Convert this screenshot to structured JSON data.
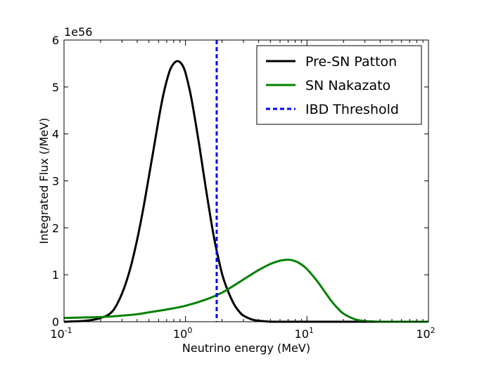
{
  "chart_data": {
    "type": "line",
    "title": "",
    "xlabel": "Neutrino energy (MeV)",
    "ylabel": "Integrated Flux (/MeV)",
    "y_offset_label": "1e56",
    "x_scale": "log",
    "xlim": [
      0.1,
      100
    ],
    "ylim": [
      0,
      6
    ],
    "x_ticks": [
      {
        "value": 0.1,
        "base": "10",
        "exp": "-1"
      },
      {
        "value": 1,
        "base": "10",
        "exp": "0"
      },
      {
        "value": 10,
        "base": "10",
        "exp": "1"
      },
      {
        "value": 100,
        "base": "10",
        "exp": "2"
      }
    ],
    "y_ticks": [
      {
        "value": 0,
        "label": "0"
      },
      {
        "value": 1,
        "label": "1"
      },
      {
        "value": 2,
        "label": "2"
      },
      {
        "value": 3,
        "label": "3"
      },
      {
        "value": 4,
        "label": "4"
      },
      {
        "value": 5,
        "label": "5"
      },
      {
        "value": 6,
        "label": "6"
      }
    ],
    "grid": false,
    "legend_position": "top-right",
    "series": [
      {
        "name": "Pre-SN Patton",
        "color": "#000000",
        "style": "solid",
        "x": [
          0.1,
          0.15,
          0.2,
          0.25,
          0.3,
          0.35,
          0.4,
          0.45,
          0.5,
          0.55,
          0.6,
          0.65,
          0.7,
          0.75,
          0.8,
          0.85,
          0.9,
          0.95,
          1.0,
          1.1,
          1.2,
          1.3,
          1.4,
          1.5,
          1.6,
          1.7,
          1.8,
          2.0,
          2.2,
          2.5,
          2.8,
          3.0,
          3.5,
          4.0,
          4.5,
          5.0,
          6.0,
          8.0,
          10.0,
          20.0,
          40.0,
          100.0
        ],
        "y": [
          0.0,
          0.02,
          0.08,
          0.22,
          0.6,
          1.12,
          1.75,
          2.42,
          3.1,
          3.72,
          4.3,
          4.78,
          5.13,
          5.38,
          5.5,
          5.55,
          5.53,
          5.45,
          5.3,
          4.85,
          4.3,
          3.75,
          3.2,
          2.7,
          2.25,
          1.85,
          1.53,
          1.02,
          0.7,
          0.38,
          0.2,
          0.13,
          0.05,
          0.02,
          0.01,
          0.0,
          0.0,
          0.0,
          0.0,
          0.0,
          0.0,
          0.0
        ]
      },
      {
        "name": "SN Nakazato",
        "color": "#008000",
        "style": "solid",
        "x": [
          0.1,
          0.2,
          0.3,
          0.4,
          0.5,
          0.7,
          1.0,
          1.5,
          2.0,
          2.5,
          3.0,
          4.0,
          5.0,
          6.0,
          7.0,
          8.0,
          9.0,
          10.0,
          12.0,
          14.0,
          16.0,
          18.0,
          20.0,
          25.0,
          30.0,
          35.0,
          40.0,
          50.0,
          70.0,
          100.0
        ],
        "y": [
          0.08,
          0.1,
          0.13,
          0.16,
          0.2,
          0.26,
          0.34,
          0.48,
          0.62,
          0.77,
          0.9,
          1.1,
          1.23,
          1.3,
          1.32,
          1.29,
          1.22,
          1.12,
          0.88,
          0.64,
          0.43,
          0.28,
          0.17,
          0.05,
          0.015,
          0.005,
          0.0,
          0.0,
          0.0,
          0.0
        ]
      },
      {
        "name": "IBD Threshold",
        "color": "#0000ff",
        "style": "dashed",
        "type": "vline",
        "x_value": 1.806
      }
    ]
  }
}
